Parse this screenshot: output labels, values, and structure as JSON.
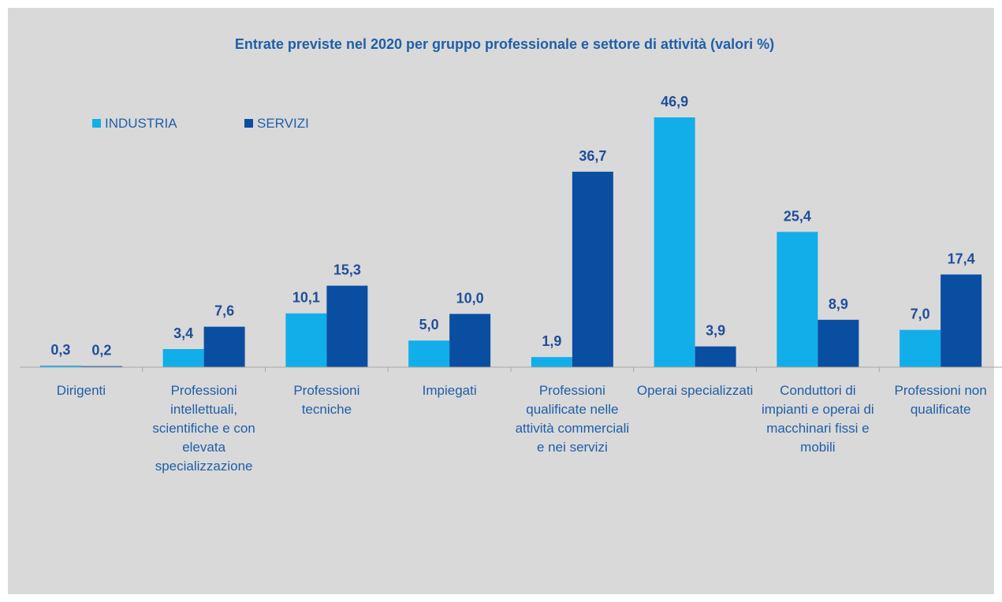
{
  "chart_data": {
    "type": "bar",
    "title": "Entrate previste nel 2020 per gruppo professionale e settore di attività (valori %)",
    "categories": [
      "Dirigenti",
      "Professioni intellettuali, scientifiche e con elevata specializzazione",
      "Professioni tecniche",
      "Impiegati",
      "Professioni qualificate nelle attività commerciali e nei servizi",
      "Operai specializzati",
      "Conduttori di impianti e operai di macchinari fissi e mobili",
      "Professioni non qualificate"
    ],
    "series": [
      {
        "name": "INDUSTRIA",
        "color": "#12aee9",
        "values": [
          0.3,
          3.4,
          10.1,
          5.0,
          1.9,
          46.9,
          25.4,
          7.0
        ],
        "value_labels": [
          "0,3",
          "3,4",
          "10,1",
          "5,0",
          "1,9",
          "46,9",
          "25,4",
          "7,0"
        ]
      },
      {
        "name": "SERVIZI",
        "color": "#0a4ea2",
        "values": [
          0.2,
          7.6,
          15.3,
          10.0,
          36.7,
          3.9,
          8.9,
          17.4
        ],
        "value_labels": [
          "0,2",
          "7,6",
          "15,3",
          "10,0",
          "36,7",
          "3,9",
          "8,9",
          "17,4"
        ]
      }
    ],
    "ylim": [
      0,
      50
    ],
    "legend": "top-left"
  }
}
